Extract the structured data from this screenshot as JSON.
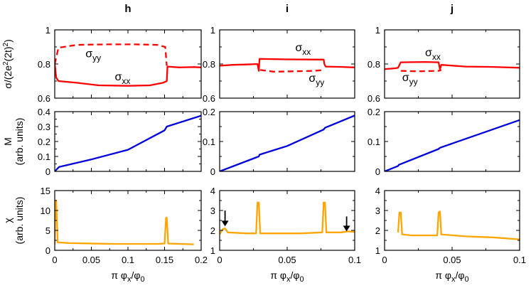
{
  "colors": {
    "sigma": "#ff0000",
    "magnetization": "#0000dd",
    "susceptibility": "#ffa500",
    "axis": "#000000"
  },
  "figure": {
    "row_labels": {
      "sigma": "σ/(2e²(2t)²)",
      "magnetization": "M (arb. units)",
      "susceptibility": "χ (arb. units)"
    }
  },
  "chart_data": [
    {
      "panel": "h",
      "row": "sigma",
      "type": "line",
      "title": "h",
      "ylabel": "σ/(2e²(2t)²)",
      "xlim": [
        0,
        0.2
      ],
      "ylim": [
        0.6,
        1
      ],
      "yticks": [
        0.6,
        0.8,
        1
      ],
      "ytick_labels": [
        "0.6",
        "0.8",
        "1"
      ],
      "xticks": [
        0,
        0.05,
        0.1,
        0.15,
        0.2
      ],
      "series": [
        {
          "name": "σxx",
          "style": "solid",
          "points": [
            [
              0,
              0.8
            ],
            [
              0.002,
              0.72
            ],
            [
              0.005,
              0.7
            ],
            [
              0.03,
              0.69
            ],
            [
              0.06,
              0.675
            ],
            [
              0.1,
              0.672
            ],
            [
              0.13,
              0.675
            ],
            [
              0.148,
              0.69
            ],
            [
              0.153,
              0.7
            ],
            [
              0.154,
              0.785
            ],
            [
              0.17,
              0.78
            ],
            [
              0.19,
              0.782
            ],
            [
              0.2,
              0.78
            ]
          ]
        },
        {
          "name": "σyy",
          "style": "dashed",
          "points": [
            [
              0,
              0.8
            ],
            [
              0.005,
              0.895
            ],
            [
              0.03,
              0.912
            ],
            [
              0.07,
              0.915
            ],
            [
              0.11,
              0.915
            ],
            [
              0.14,
              0.912
            ],
            [
              0.151,
              0.9
            ],
            [
              0.153,
              0.79
            ]
          ]
        }
      ],
      "annotations": [
        {
          "text": "σ",
          "sub": "yy",
          "x": 0.042,
          "y": 0.84
        },
        {
          "text": "σ",
          "sub": "xx",
          "x": 0.082,
          "y": 0.705
        }
      ]
    },
    {
      "panel": "i",
      "row": "sigma",
      "type": "line",
      "title": "i",
      "xlim": [
        0,
        0.1
      ],
      "ylim": [
        0.6,
        1
      ],
      "yticks": [
        0.6,
        0.8,
        1
      ],
      "ytick_labels": [
        "0.6",
        "0.8",
        "1"
      ],
      "xticks": [
        0,
        0.05,
        0.1
      ],
      "series": [
        {
          "name": "σxx",
          "style": "solid",
          "points": [
            [
              0,
              0.79
            ],
            [
              0.01,
              0.795
            ],
            [
              0.02,
              0.797
            ],
            [
              0.028,
              0.8
            ],
            [
              0.029,
              0.76
            ],
            [
              0.0295,
              0.83
            ],
            [
              0.05,
              0.827
            ],
            [
              0.077,
              0.826
            ],
            [
              0.0775,
              0.8
            ],
            [
              0.0785,
              0.785
            ],
            [
              0.09,
              0.783
            ],
            [
              0.1,
              0.78
            ]
          ]
        },
        {
          "name": "σyy",
          "style": "dashed",
          "points": [
            [
              0.03,
              0.765
            ],
            [
              0.04,
              0.755
            ],
            [
              0.055,
              0.757
            ],
            [
              0.07,
              0.76
            ],
            [
              0.077,
              0.765
            ]
          ]
        }
      ],
      "annotations": [
        {
          "text": "σ",
          "sub": "xx",
          "x": 0.056,
          "y": 0.875
        },
        {
          "text": "σ",
          "sub": "yy",
          "x": 0.066,
          "y": 0.695
        }
      ]
    },
    {
      "panel": "j",
      "row": "sigma",
      "type": "line",
      "title": "j",
      "xlim": [
        0,
        0.1
      ],
      "ylim": [
        0.6,
        1
      ],
      "yticks": [
        0.6,
        0.8,
        1
      ],
      "ytick_labels": [
        "0.6",
        "0.8",
        "1"
      ],
      "xticks": [
        0,
        0.05,
        0.1
      ],
      "series": [
        {
          "name": "σxx",
          "style": "solid",
          "points": [
            [
              0,
              0.77
            ],
            [
              0.008,
              0.775
            ],
            [
              0.01,
              0.778
            ],
            [
              0.012,
              0.81
            ],
            [
              0.03,
              0.812
            ],
            [
              0.04,
              0.81
            ],
            [
              0.041,
              0.77
            ],
            [
              0.042,
              0.795
            ],
            [
              0.06,
              0.785
            ],
            [
              0.08,
              0.783
            ],
            [
              0.1,
              0.778
            ]
          ]
        },
        {
          "name": "σyy",
          "style": "dashed",
          "points": [
            [
              0.012,
              0.76
            ],
            [
              0.025,
              0.757
            ],
            [
              0.04,
              0.76
            ],
            [
              0.042,
              0.765
            ]
          ]
        }
      ],
      "annotations": [
        {
          "text": "σ",
          "sub": "xx",
          "x": 0.03,
          "y": 0.845
        },
        {
          "text": "σ",
          "sub": "yy",
          "x": 0.013,
          "y": 0.7
        }
      ]
    },
    {
      "panel": "h",
      "row": "magnetization",
      "type": "line",
      "ylabel": "M (arb. units)",
      "xlim": [
        0,
        0.2
      ],
      "ylim": [
        0,
        0.4
      ],
      "yticks": [
        0,
        0.1,
        0.2,
        0.3,
        0.4
      ],
      "ytick_labels": [
        "0",
        "0.1",
        "0.2",
        "0.3",
        "0.4"
      ],
      "xticks": [
        0,
        0.05,
        0.1,
        0.15,
        0.2
      ],
      "series": [
        {
          "name": "M",
          "style": "solid",
          "points": [
            [
              0,
              0
            ],
            [
              0.004,
              0.02
            ],
            [
              0.006,
              0.03
            ],
            [
              0.05,
              0.08
            ],
            [
              0.1,
              0.145
            ],
            [
              0.15,
              0.275
            ],
            [
              0.153,
              0.3
            ],
            [
              0.2,
              0.373
            ]
          ]
        }
      ]
    },
    {
      "panel": "i",
      "row": "magnetization",
      "type": "line",
      "xlim": [
        0,
        0.1
      ],
      "ylim": [
        0,
        0.2
      ],
      "yticks": [
        0,
        0.1,
        0.2
      ],
      "ytick_labels": [
        "0",
        "0.1",
        "0.2"
      ],
      "xticks": [
        0,
        0.05,
        0.1
      ],
      "series": [
        {
          "name": "M",
          "style": "solid",
          "points": [
            [
              0,
              0
            ],
            [
              0.029,
              0.05
            ],
            [
              0.0295,
              0.056
            ],
            [
              0.05,
              0.085
            ],
            [
              0.077,
              0.14
            ],
            [
              0.078,
              0.146
            ],
            [
              0.1,
              0.187
            ]
          ]
        }
      ]
    },
    {
      "panel": "j",
      "row": "magnetization",
      "type": "line",
      "xlim": [
        0,
        0.1
      ],
      "ylim": [
        0,
        0.2
      ],
      "yticks": [
        0,
        0.1,
        0.2
      ],
      "ytick_labels": [
        "0",
        "0.1",
        "0.2"
      ],
      "xticks": [
        0,
        0.05,
        0.1
      ],
      "series": [
        {
          "name": "M",
          "style": "solid",
          "points": [
            [
              0,
              0
            ],
            [
              0.01,
              0.018
            ],
            [
              0.0105,
              0.022
            ],
            [
              0.04,
              0.075
            ],
            [
              0.041,
              0.079
            ],
            [
              0.1,
              0.172
            ]
          ]
        }
      ]
    },
    {
      "panel": "h",
      "row": "susceptibility",
      "type": "line",
      "ylabel": "χ (arb. units)",
      "xlabel": "π φx/φ0",
      "xlim": [
        0,
        0.2
      ],
      "ylim": [
        0,
        15
      ],
      "yticks": [
        0,
        5,
        10,
        15
      ],
      "ytick_labels": [
        "0",
        "5",
        "10",
        "15"
      ],
      "xticks": [
        0,
        0.05,
        0.1,
        0.15,
        0.2
      ],
      "xtick_labels": [
        "0",
        "0.05",
        "0.1",
        "0.15",
        "0.2"
      ],
      "series": [
        {
          "name": "χ",
          "style": "solid",
          "points": [
            [
              0,
              1.5
            ],
            [
              0.001,
              12.5
            ],
            [
              0.002,
              12.5
            ],
            [
              0.004,
              2.0
            ],
            [
              0.02,
              1.8
            ],
            [
              0.08,
              1.6
            ],
            [
              0.14,
              1.6
            ],
            [
              0.15,
              1.7
            ],
            [
              0.152,
              8.2
            ],
            [
              0.153,
              8.2
            ],
            [
              0.155,
              1.7
            ],
            [
              0.19,
              1.5
            ]
          ]
        }
      ]
    },
    {
      "panel": "i",
      "row": "susceptibility",
      "type": "line",
      "xlabel": "π φx/φ0",
      "xlim": [
        0,
        0.1
      ],
      "ylim": [
        1,
        4
      ],
      "yticks": [
        1,
        2,
        3,
        4
      ],
      "ytick_labels": [
        "1",
        "2",
        "3",
        "4"
      ],
      "xticks": [
        0,
        0.05,
        0.1
      ],
      "xtick_labels": [
        "0",
        "0.05",
        "0.1"
      ],
      "series": [
        {
          "name": "χ",
          "style": "solid",
          "points": [
            [
              0,
              1.8
            ],
            [
              0.002,
              2.05
            ],
            [
              0.004,
              2.1
            ],
            [
              0.006,
              1.9
            ],
            [
              0.02,
              1.85
            ],
            [
              0.027,
              1.85
            ],
            [
              0.028,
              3.4
            ],
            [
              0.029,
              3.4
            ],
            [
              0.03,
              1.85
            ],
            [
              0.06,
              1.85
            ],
            [
              0.076,
              1.9
            ],
            [
              0.077,
              3.4
            ],
            [
              0.078,
              3.4
            ],
            [
              0.079,
              1.9
            ],
            [
              0.09,
              1.9
            ],
            [
              0.095,
              1.95
            ],
            [
              0.1,
              1.92
            ]
          ]
        }
      ],
      "arrows": [
        {
          "x": 0.004,
          "y_from": 3.0,
          "y_to": 2.2
        },
        {
          "x": 0.094,
          "y_from": 2.7,
          "y_to": 1.95
        }
      ]
    },
    {
      "panel": "j",
      "row": "susceptibility",
      "type": "line",
      "xlabel": "π φx/φ0",
      "xlim": [
        0,
        0.1
      ],
      "ylim": [
        1,
        4
      ],
      "yticks": [
        1,
        2,
        3,
        4
      ],
      "ytick_labels": [
        "1",
        "2",
        "3",
        "4"
      ],
      "xticks": [
        0,
        0.05,
        0.1
      ],
      "xtick_labels": [
        "0",
        "0.05",
        "0.1"
      ],
      "series": [
        {
          "name": "χ",
          "style": "solid",
          "points": [
            [
              0.01,
              1.9
            ],
            [
              0.011,
              2.9
            ],
            [
              0.012,
              2.9
            ],
            [
              0.013,
              1.8
            ],
            [
              0.02,
              1.75
            ],
            [
              0.039,
              1.75
            ],
            [
              0.04,
              2.9
            ],
            [
              0.041,
              2.95
            ],
            [
              0.042,
              1.8
            ],
            [
              0.06,
              1.7
            ],
            [
              0.08,
              1.65
            ],
            [
              0.1,
              1.55
            ]
          ]
        }
      ]
    }
  ]
}
